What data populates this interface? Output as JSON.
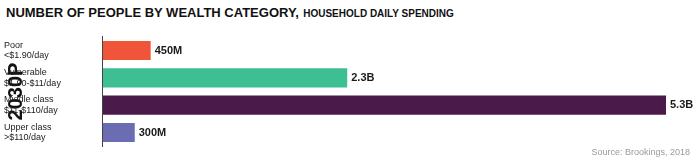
{
  "chart_data": {
    "type": "bar",
    "orientation": "horizontal",
    "title": "NUMBER OF PEOPLE BY WEALTH CATEGORY,",
    "subtitle": "HOUSEHOLD DAILY SPENDING",
    "ylabel": "2030P",
    "source": "Source: Brookings, 2018",
    "categories": [
      [
        "Poor",
        "<$1.90/day"
      ],
      [
        "Vulnerable",
        "$1.90-$11/day"
      ],
      [
        "Middle class",
        "$11-$110/day"
      ],
      [
        "Upper class",
        ">$110/day"
      ]
    ],
    "values": [
      450000000,
      2300000000,
      5300000000,
      300000000
    ],
    "value_labels": [
      "450M",
      "2.3B",
      "5.3B",
      "300M"
    ],
    "colors": [
      "#f0553a",
      "#3dbf93",
      "#4a1a4b",
      "#6a6db1"
    ],
    "xlim": [
      0,
      5300000000
    ],
    "tick_labels": "y",
    "data_labels": true,
    "grid": false,
    "legend": false
  }
}
